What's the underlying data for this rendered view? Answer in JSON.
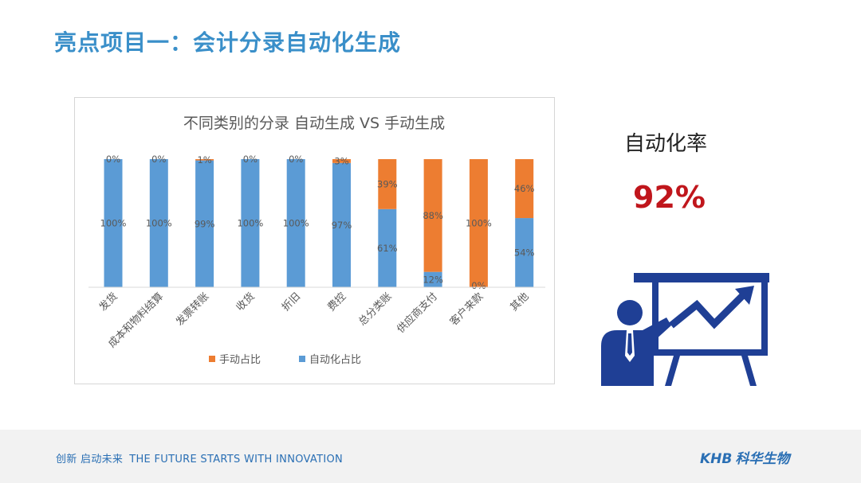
{
  "slide": {
    "title": "亮点项目一：会计分录自动化生成",
    "rate_label": "自动化率",
    "rate_value": "92%"
  },
  "footer": {
    "slogan_cn": "创新 启动未来",
    "slogan_en": "THE FUTURE STARTS WITH INNOVATION",
    "logo_en": "KHB",
    "logo_cn": "科华生物"
  },
  "colors": {
    "auto": "#5b9bd5",
    "manual": "#ed7d31",
    "title": "#3a8fc9",
    "rate": "#c0161c",
    "icon": "#1f3f95"
  },
  "icons": [
    "presenter-chart-icon"
  ],
  "chart_data": {
    "type": "bar",
    "stacked": true,
    "percent_stacked": true,
    "title": "不同类别的分录 自动生成 VS 手动生成",
    "categories": [
      "发货",
      "成本和物料结算",
      "发票转账",
      "收货",
      "折旧",
      "费控",
      "总分类账",
      "供应商支付",
      "客户来款",
      "其他"
    ],
    "series": [
      {
        "name": "自动化占比",
        "values": [
          100,
          100,
          99,
          100,
          100,
          97,
          61,
          12,
          0,
          54
        ],
        "labels": [
          "100%",
          "100%",
          "99%",
          "100%",
          "100%",
          "97%",
          "61%",
          "12%",
          "0%",
          "54%"
        ]
      },
      {
        "name": "手动占比",
        "values": [
          0,
          0,
          1,
          0,
          0,
          3,
          39,
          88,
          100,
          46
        ],
        "labels": [
          "0%",
          "0%",
          "1%",
          "0%",
          "0%",
          "3%",
          "39%",
          "88%",
          "100%",
          "46%"
        ]
      }
    ],
    "legend": {
      "position": "bottom",
      "order": [
        "手动占比",
        "自动化占比"
      ]
    },
    "ylim": [
      0,
      100
    ],
    "grid": false
  }
}
